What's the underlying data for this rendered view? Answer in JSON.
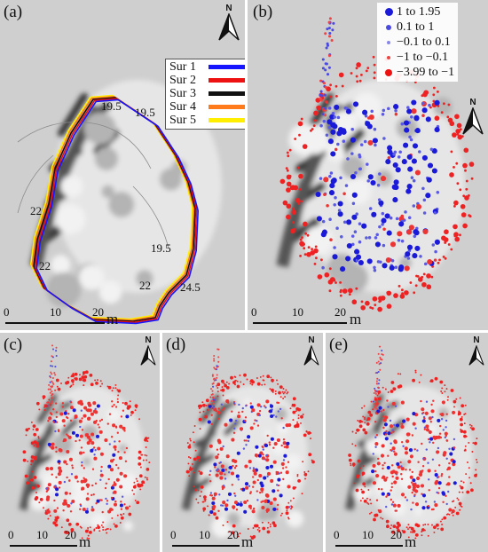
{
  "panels": {
    "a": {
      "label": "(a)",
      "north": "N",
      "scale": {
        "ticks": [
          "0",
          "10",
          "20"
        ],
        "unit": "m"
      },
      "legend": [
        {
          "name": "Sur 1",
          "color": "#1515ff"
        },
        {
          "name": "Sur 2",
          "color": "#ee1111"
        },
        {
          "name": "Sur 3",
          "color": "#111111"
        },
        {
          "name": "Sur 4",
          "color": "#ff7a1a"
        },
        {
          "name": "Sur 5",
          "color": "#ffee00"
        }
      ],
      "contours": [
        "19.5",
        "19.5",
        "22",
        "19.5",
        "22",
        "22",
        "24.5"
      ]
    },
    "b": {
      "label": "(b)",
      "north": "N",
      "scale": {
        "ticks": [
          "0",
          "10",
          "20"
        ],
        "unit": "m"
      },
      "legend": [
        {
          "label": "1  to  1.95",
          "color": "#1a1ad8"
        },
        {
          "label": "0.1  to  1",
          "color": "#4a4ae0"
        },
        {
          "label": "−0.1  to  0.1",
          "color": "#8888e6"
        },
        {
          "label": "−1  to −0.1",
          "color": "#ee4444"
        },
        {
          "label": "−3.99  to −1",
          "color": "#ee1111"
        }
      ]
    },
    "c": {
      "label": "(c)",
      "north": "N",
      "scale": {
        "ticks": [
          "0",
          "10",
          "20"
        ],
        "unit": "m"
      }
    },
    "d": {
      "label": "(d)",
      "north": "N",
      "scale": {
        "ticks": [
          "0",
          "10",
          "20"
        ],
        "unit": "m"
      }
    },
    "e": {
      "label": "(e)",
      "north": "N",
      "scale": {
        "ticks": [
          "0",
          "10",
          "20"
        ],
        "unit": "m"
      }
    }
  }
}
